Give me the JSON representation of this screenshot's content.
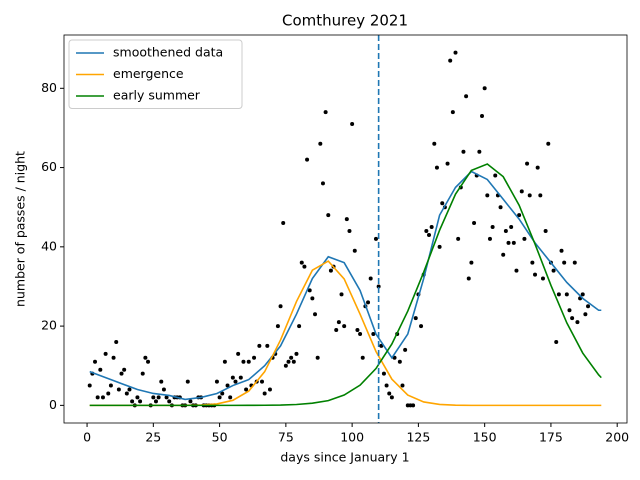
{
  "chart_data": {
    "type": "combo",
    "title": "Comthurey 2021",
    "xlabel": "days since January 1",
    "ylabel": "number of passes / night",
    "xlim": [
      -8.7,
      203.7
    ],
    "ylim": [
      -4.45,
      93.45
    ],
    "xticks": [
      0,
      25,
      50,
      75,
      100,
      125,
      150,
      175,
      200
    ],
    "yticks": [
      0,
      20,
      40,
      60,
      80
    ],
    "legend": "upper left",
    "vlines": [
      {
        "x": 110,
        "color": "#1f77b4",
        "style": "dashed"
      }
    ],
    "series": [
      {
        "type": "scatter",
        "color": "#000000",
        "x": [
          1,
          2,
          3,
          4,
          5,
          6,
          7,
          8,
          9,
          10,
          11,
          12,
          13,
          14,
          15,
          16,
          17,
          18,
          19,
          20,
          21,
          22,
          23,
          24,
          25,
          26,
          27,
          28,
          29,
          30,
          31,
          32,
          33,
          34,
          35,
          36,
          37,
          38,
          39,
          40,
          41,
          42,
          43,
          44,
          45,
          46,
          47,
          48,
          49,
          50,
          51,
          52,
          53,
          54,
          55,
          56,
          57,
          58,
          59,
          60,
          61,
          62,
          63,
          64,
          65,
          66,
          67,
          68,
          69,
          70,
          71,
          72,
          73,
          74,
          75,
          76,
          77,
          78,
          79,
          80,
          81,
          82,
          83,
          84,
          85,
          86,
          87,
          88,
          89,
          90,
          91,
          92,
          93,
          94,
          95,
          96,
          97,
          98,
          99,
          100,
          101,
          102,
          103,
          104,
          105,
          106,
          107,
          108,
          109,
          110,
          111,
          112,
          113,
          114,
          115,
          116,
          117,
          118,
          119,
          120,
          121,
          122,
          123,
          124,
          125,
          126,
          127,
          128,
          129,
          130,
          131,
          132,
          133,
          134,
          135,
          136,
          137,
          138,
          139,
          140,
          141,
          142,
          143,
          144,
          145,
          146,
          147,
          148,
          149,
          150,
          151,
          152,
          153,
          154,
          155,
          156,
          157,
          158,
          159,
          160,
          161,
          162,
          163,
          164,
          165,
          166,
          167,
          168,
          169,
          170,
          171,
          172,
          173,
          174,
          175,
          176,
          177,
          178,
          179,
          180,
          181,
          182,
          183,
          184,
          185,
          186,
          187,
          188,
          189
        ],
        "values": [
          5,
          8,
          11,
          2,
          9,
          2,
          13,
          3,
          5,
          12,
          16,
          4,
          8,
          9,
          3,
          4,
          1,
          0,
          2,
          1,
          8,
          12,
          11,
          0,
          2,
          1,
          2,
          6,
          4,
          2,
          1,
          0,
          2,
          2,
          2,
          0,
          0,
          6,
          1,
          0,
          0,
          2,
          2,
          0,
          0,
          0,
          0,
          0,
          6,
          2,
          3,
          11,
          5,
          2,
          7,
          6,
          13,
          7,
          11,
          4,
          11,
          5,
          12,
          6,
          15,
          6,
          3,
          15,
          4,
          12,
          13,
          20,
          25,
          46,
          10,
          11,
          12,
          11,
          13,
          20,
          36,
          35,
          62,
          29,
          27,
          23,
          12,
          66,
          56,
          74,
          48,
          34,
          35,
          19,
          21,
          28,
          20,
          47,
          44,
          71,
          39,
          19,
          18,
          12,
          25,
          26,
          32,
          18,
          42,
          30,
          15,
          8,
          5,
          3,
          2,
          12,
          18,
          11,
          5,
          14,
          0,
          0,
          0,
          22,
          28,
          20,
          33,
          44,
          43,
          45,
          66,
          60,
          40,
          51,
          50,
          61,
          87,
          74,
          89,
          42,
          55,
          64,
          78,
          32,
          36,
          46,
          58,
          64,
          73,
          80,
          53,
          42,
          45,
          58,
          53,
          50,
          38,
          44,
          41,
          45,
          41,
          34,
          48,
          54,
          42,
          61,
          53,
          36,
          33,
          60,
          53,
          32,
          44,
          66,
          36,
          34,
          16,
          28,
          39,
          36,
          28,
          24,
          22,
          36,
          21,
          27,
          28,
          23,
          25
        ]
      },
      {
        "type": "line",
        "name": "smoothened data",
        "color": "#1f77b4",
        "x": [
          1,
          7,
          13,
          19,
          25,
          31,
          37,
          43,
          49,
          55,
          61,
          67,
          73,
          79,
          85,
          91,
          97,
          103,
          109,
          115,
          121,
          127,
          133,
          139,
          145,
          151,
          157,
          163,
          169,
          175,
          181,
          187,
          193,
          194
        ],
        "values": [
          8.5,
          7,
          5.5,
          4,
          3,
          2.5,
          1.5,
          2,
          3,
          5,
          6.5,
          10,
          15,
          23,
          32,
          37.5,
          36,
          29,
          18,
          12,
          18,
          32,
          48,
          55,
          59,
          57,
          52,
          47,
          41,
          36,
          31,
          27,
          24,
          24
        ]
      },
      {
        "type": "line",
        "name": "emergence",
        "color": "#ffa500",
        "x": [
          1,
          7,
          13,
          19,
          25,
          31,
          37,
          43,
          49,
          55,
          61,
          67,
          73,
          79,
          85,
          91,
          97,
          103,
          109,
          115,
          121,
          127,
          133,
          139,
          145,
          151,
          157,
          163,
          169,
          175,
          181,
          187,
          193,
          194
        ],
        "values": [
          0,
          0,
          0,
          0,
          0,
          0,
          0.02,
          0.09,
          0.37,
          1.27,
          3.6,
          8.5,
          16.5,
          26.2,
          34.1,
          36.4,
          31.9,
          23,
          13.6,
          6.6,
          2.6,
          0.86,
          0.23,
          0.05,
          0,
          0,
          0,
          0,
          0,
          0,
          0,
          0,
          0,
          0
        ]
      },
      {
        "type": "line",
        "name": "early summer",
        "color": "#008000",
        "x": [
          1,
          7,
          13,
          19,
          25,
          31,
          37,
          43,
          49,
          55,
          61,
          67,
          73,
          79,
          85,
          91,
          97,
          103,
          109,
          115,
          121,
          127,
          133,
          139,
          145,
          151,
          157,
          163,
          169,
          175,
          181,
          187,
          193,
          194
        ],
        "values": [
          0,
          0,
          0,
          0,
          0,
          0,
          0,
          0,
          0,
          0,
          0.01,
          0.03,
          0.08,
          0.22,
          0.54,
          1.2,
          2.6,
          5.1,
          9.3,
          15.5,
          23.8,
          33.6,
          44.2,
          53.3,
          59.3,
          60.9,
          57.7,
          50.5,
          40.7,
          30.3,
          20.8,
          13.2,
          7.7,
          7.0
        ]
      }
    ]
  }
}
